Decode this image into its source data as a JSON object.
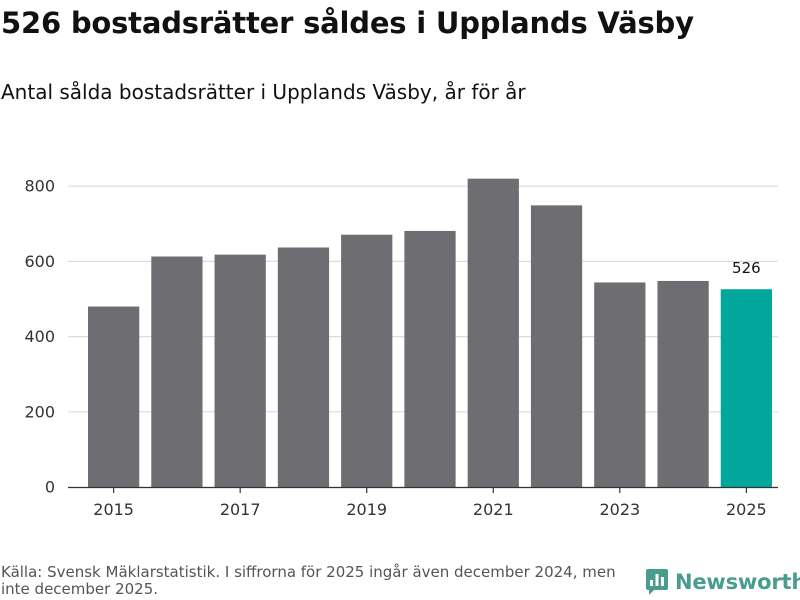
{
  "title": "526 bostadsrätter såldes i Upplands Väsby",
  "subtitle": "Antal sålda bostadsrätter i Upplands Väsby, år för år",
  "source": "Källa: Svensk Mäklarstatistik. I siffrorna för 2025 ingår även december 2024, men inte december 2025.",
  "brand": {
    "name": "Newsworthy",
    "color": "#4a9d8e",
    "icon": "newsworthy-logo-icon"
  },
  "colors": {
    "bar": "#6e6d72",
    "highlight": "#00a79a",
    "grid": "#dcdcdc",
    "axis": "#333333",
    "text": "#111111"
  },
  "chart_data": {
    "type": "bar",
    "title": "526 bostadsrätter såldes i Upplands Väsby",
    "subtitle": "Antal sålda bostadsrätter i Upplands Väsby, år för år",
    "xlabel": "",
    "ylabel": "",
    "categories": [
      "2015",
      "2016",
      "2017",
      "2018",
      "2019",
      "2020",
      "2021",
      "2022",
      "2023",
      "2024",
      "2025"
    ],
    "values": [
      480,
      613,
      618,
      637,
      671,
      681,
      820,
      749,
      544,
      548,
      526
    ],
    "highlight_index": 10,
    "data_labels": [
      {
        "index": 10,
        "text": "526"
      }
    ],
    "x_tick_labels": [
      "2015",
      "2017",
      "2019",
      "2021",
      "2023",
      "2025"
    ],
    "y_ticks": [
      0,
      200,
      400,
      600,
      800
    ],
    "ylim": [
      0,
      850
    ],
    "grid": true,
    "legend": "none"
  }
}
